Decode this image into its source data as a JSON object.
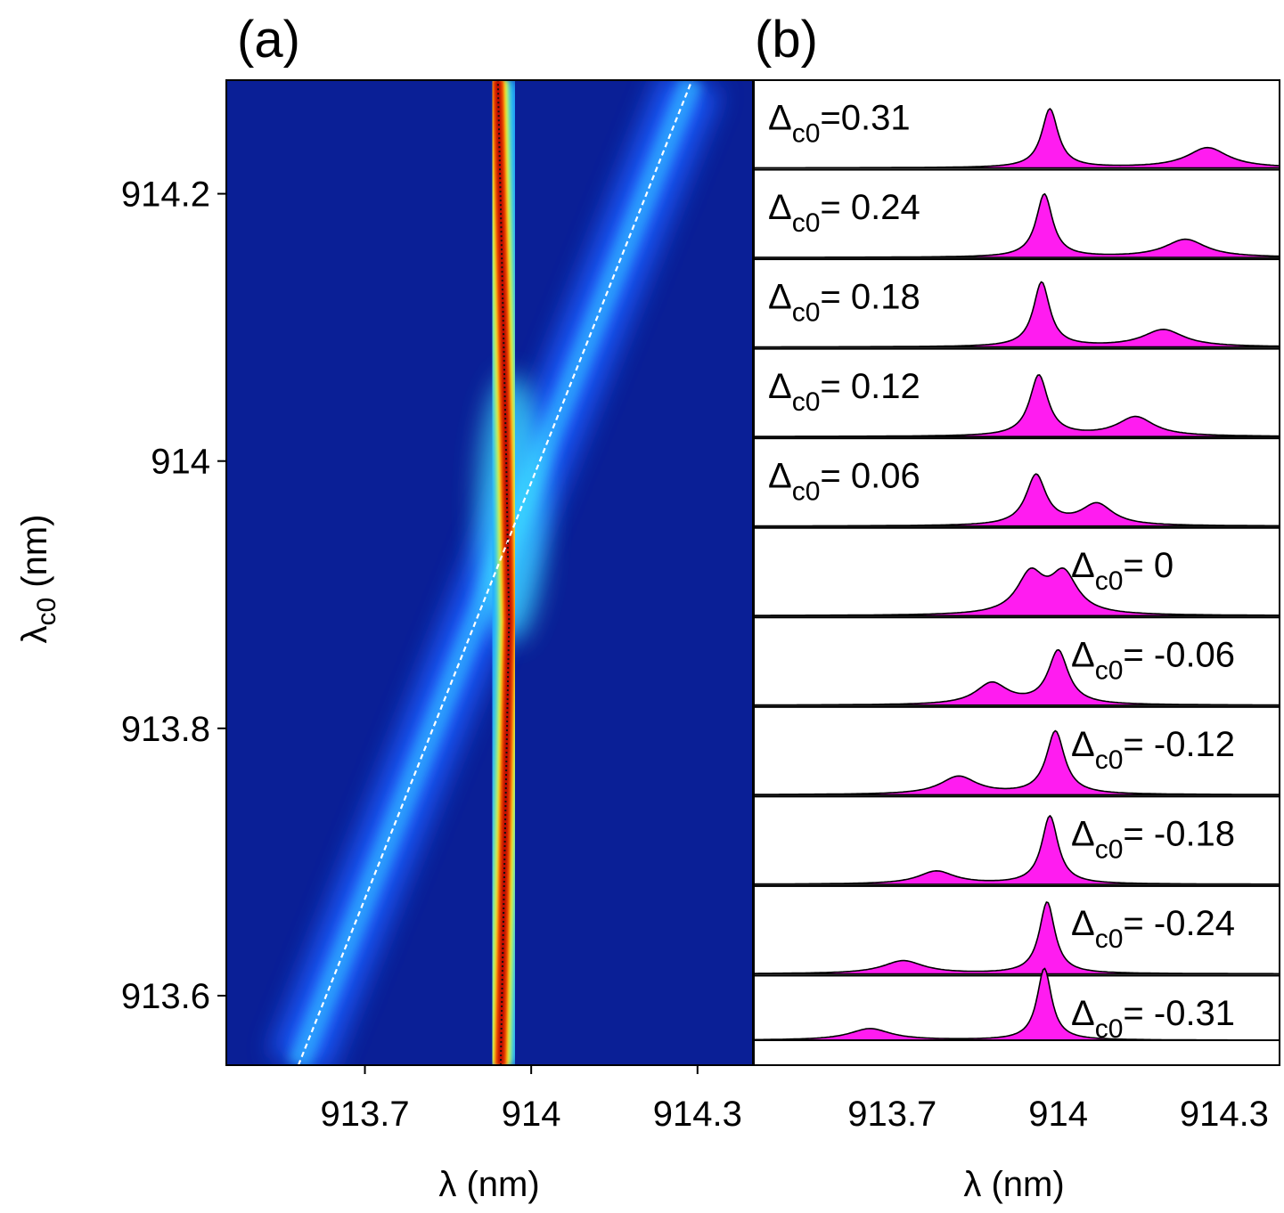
{
  "colors": {
    "background": "#ffffff",
    "map_low": "#0a1f96",
    "spectrum_fill": "#ff1cf0",
    "axis": "#000000",
    "guide_line": "#ffffff"
  },
  "chart_data": [
    {
      "panel": "(a)",
      "type": "heatmap",
      "title": "",
      "xlabel": "λ (nm)",
      "ylabel": "λc0 (nm)",
      "ylabel_parts": {
        "symbol": "λ",
        "subscript": "c0",
        "unit": " (nm)"
      },
      "xlim": [
        913.45,
        914.4
      ],
      "ylim": [
        913.548,
        914.285
      ],
      "xticks": [
        913.7,
        914,
        914.3
      ],
      "xtick_labels": [
        "913.7",
        "914",
        "914.3"
      ],
      "yticks": [
        913.6,
        913.8,
        914,
        914.2
      ],
      "ytick_labels": [
        "913.6",
        "913.8",
        "914",
        "914.2"
      ],
      "colormap": "jet",
      "modes": {
        "quantum_dot": {
          "description": "nearly fixed emission line",
          "points": [
            [
              913.945,
              913.548
            ],
            [
              913.96,
              913.88
            ],
            [
              913.955,
              914.0
            ],
            [
              913.94,
              914.285
            ]
          ]
        },
        "cavity": {
          "description": "tuned cavity mode (dashed guide)",
          "points": [
            [
              913.58,
              913.548
            ],
            [
              914.29,
              914.285
            ]
          ]
        }
      }
    },
    {
      "panel": "(b)",
      "type": "area",
      "title": "",
      "xlabel": "λ (nm)",
      "xlim": [
        913.45,
        914.4
      ],
      "xticks": [
        913.7,
        914,
        914.3
      ],
      "xtick_labels": [
        "913.7",
        "914",
        "914.3"
      ],
      "detuning_symbol": "Δ",
      "detuning_subscript": "c0",
      "series": [
        {
          "label": "=0.31",
          "detuning": 0.31,
          "label_side": "left",
          "peaks": [
            {
              "x": 913.985,
              "amp": 0.82,
              "w": 0.018
            },
            {
              "x": 914.27,
              "amp": 0.28,
              "w": 0.045
            }
          ]
        },
        {
          "label": "= 0.24",
          "detuning": 0.24,
          "label_side": "left",
          "peaks": [
            {
              "x": 913.975,
              "amp": 0.88,
              "w": 0.018
            },
            {
              "x": 914.23,
              "amp": 0.25,
              "w": 0.045
            }
          ]
        },
        {
          "label": "= 0.18",
          "detuning": 0.18,
          "label_side": "left",
          "peaks": [
            {
              "x": 913.97,
              "amp": 0.9,
              "w": 0.018
            },
            {
              "x": 914.19,
              "amp": 0.24,
              "w": 0.045
            }
          ]
        },
        {
          "label": "= 0.12",
          "detuning": 0.12,
          "label_side": "left",
          "peaks": [
            {
              "x": 913.965,
              "amp": 0.85,
              "w": 0.02
            },
            {
              "x": 914.14,
              "amp": 0.27,
              "w": 0.04
            }
          ]
        },
        {
          "label": "= 0.06",
          "detuning": 0.06,
          "label_side": "left",
          "peaks": [
            {
              "x": 913.96,
              "amp": 0.7,
              "w": 0.022
            },
            {
              "x": 914.07,
              "amp": 0.3,
              "w": 0.035
            }
          ]
        },
        {
          "label": "= 0",
          "detuning": 0,
          "label_side": "right",
          "peaks": [
            {
              "x": 913.95,
              "amp": 0.55,
              "w": 0.03
            },
            {
              "x": 914.01,
              "amp": 0.55,
              "w": 0.03
            }
          ]
        },
        {
          "label": "= -0.06",
          "detuning": -0.06,
          "label_side": "right",
          "peaks": [
            {
              "x": 913.88,
              "amp": 0.3,
              "w": 0.035
            },
            {
              "x": 914.0,
              "amp": 0.75,
              "w": 0.022
            }
          ]
        },
        {
          "label": "= -0.12",
          "detuning": -0.12,
          "label_side": "right",
          "peaks": [
            {
              "x": 913.82,
              "amp": 0.25,
              "w": 0.04
            },
            {
              "x": 913.995,
              "amp": 0.88,
              "w": 0.02
            }
          ]
        },
        {
          "label": "= -0.18",
          "detuning": -0.18,
          "label_side": "right",
          "peaks": [
            {
              "x": 913.78,
              "amp": 0.18,
              "w": 0.04
            },
            {
              "x": 913.985,
              "amp": 0.95,
              "w": 0.018
            }
          ]
        },
        {
          "label": "= -0.24",
          "detuning": -0.24,
          "label_side": "right",
          "peaks": [
            {
              "x": 913.72,
              "amp": 0.18,
              "w": 0.045
            },
            {
              "x": 913.98,
              "amp": 1.0,
              "w": 0.017
            }
          ]
        },
        {
          "label": "= -0.31",
          "detuning": -0.31,
          "label_side": "right",
          "peaks": [
            {
              "x": 913.66,
              "amp": 0.16,
              "w": 0.045
            },
            {
              "x": 913.975,
              "amp": 1.0,
              "w": 0.016
            }
          ]
        }
      ]
    }
  ]
}
